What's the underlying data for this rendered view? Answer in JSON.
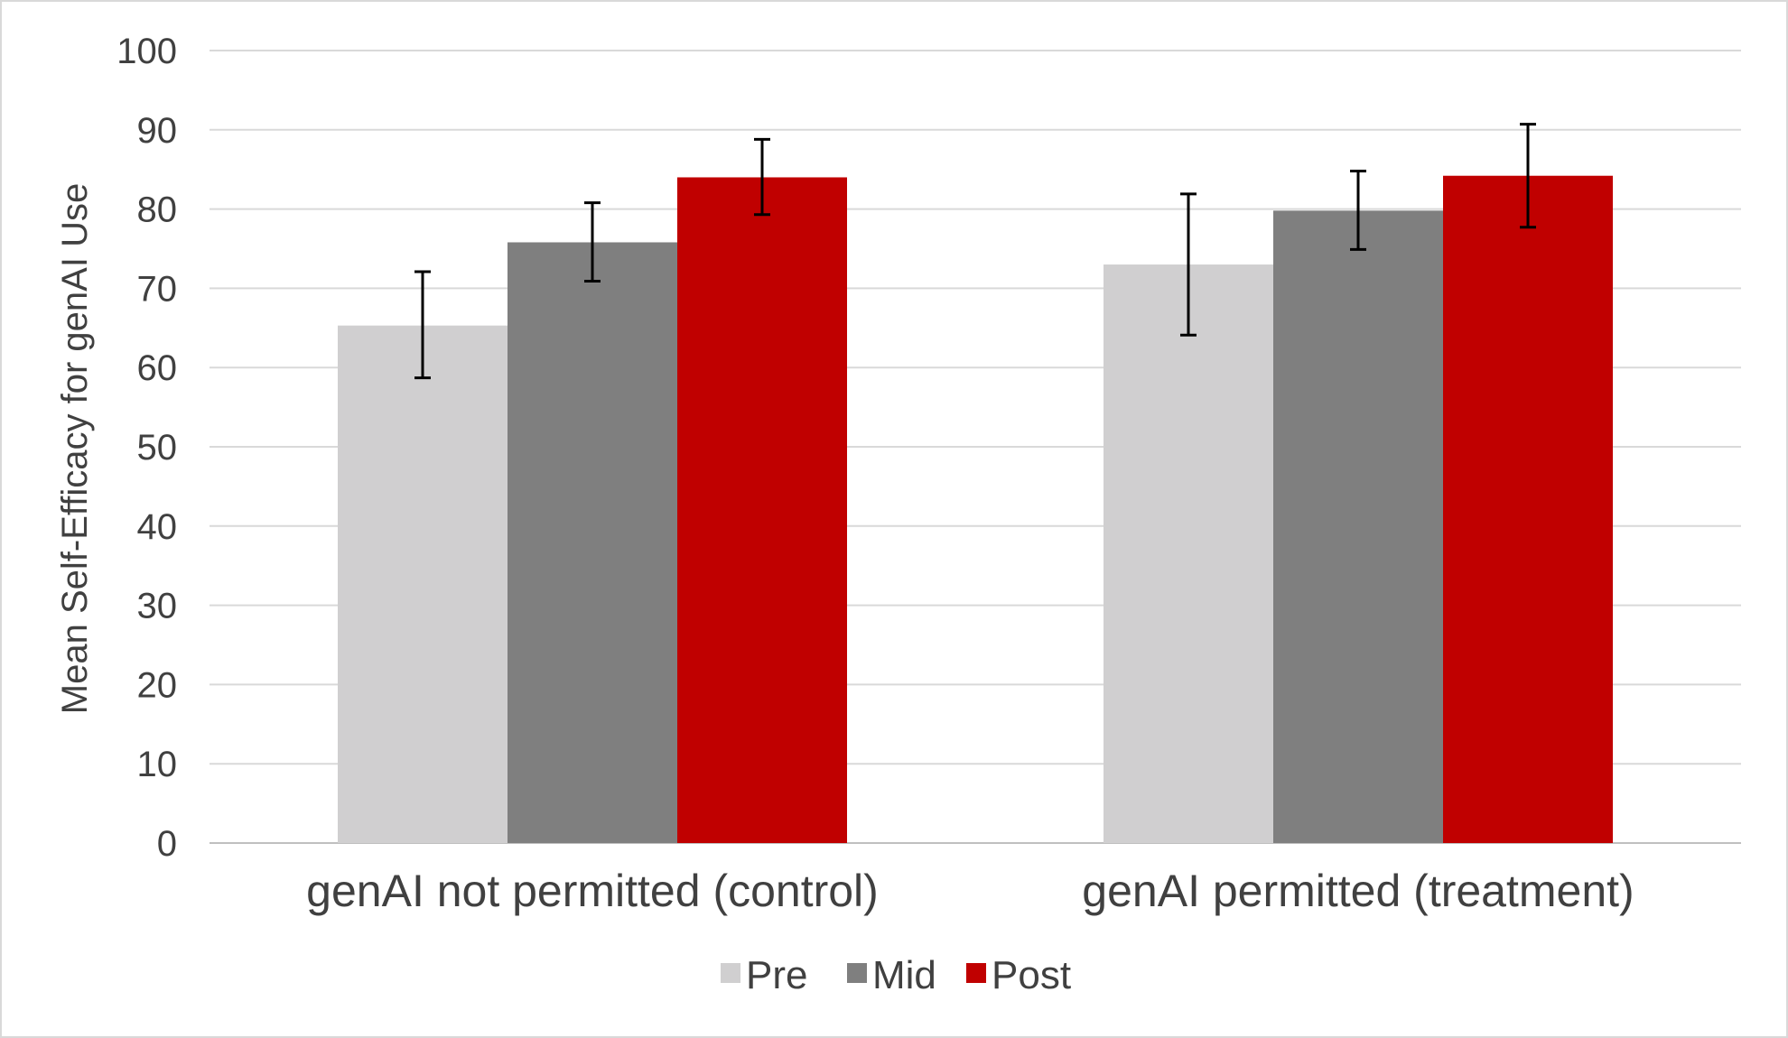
{
  "chart_data": {
    "type": "bar",
    "title": "",
    "xlabel": "",
    "ylabel": "Mean Self-Efficacy for genAI Use",
    "categories": [
      "genAI not permitted (control)",
      "genAI permitted (treatment)"
    ],
    "ylim": [
      0,
      100
    ],
    "yticks": [
      0,
      10,
      20,
      30,
      40,
      50,
      60,
      70,
      80,
      90,
      100
    ],
    "grid": true,
    "legend": "bottom-center",
    "series": [
      {
        "name": "Pre",
        "color": "#d0cfd0",
        "values": [
          65.3,
          73.0
        ],
        "err_low": [
          58.7,
          64.1
        ],
        "err_high": [
          72.1,
          81.9
        ]
      },
      {
        "name": "Mid",
        "color": "#7f7f7f",
        "values": [
          75.8,
          79.8
        ],
        "err_low": [
          70.9,
          74.9
        ],
        "err_high": [
          80.8,
          84.8
        ]
      },
      {
        "name": "Post",
        "color": "#c00000",
        "values": [
          84.0,
          84.2
        ],
        "err_low": [
          79.3,
          77.7
        ],
        "err_high": [
          88.8,
          90.7
        ]
      }
    ]
  }
}
